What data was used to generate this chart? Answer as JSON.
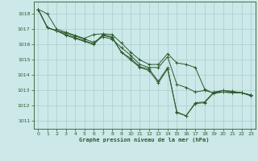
{
  "title": "Graphe pression niveau de la mer (hPa)",
  "background_color": "#cce8e8",
  "grid_color": "#aacccc",
  "line_color": "#2d5a2d",
  "marker_color": "#2d5a2d",
  "xlim": [
    -0.5,
    23.5
  ],
  "ylim": [
    1010.5,
    1018.8
  ],
  "yticks": [
    1011,
    1012,
    1013,
    1014,
    1015,
    1016,
    1017,
    1018
  ],
  "xticks": [
    0,
    1,
    2,
    3,
    4,
    5,
    6,
    7,
    8,
    9,
    10,
    11,
    12,
    13,
    14,
    15,
    16,
    17,
    18,
    19,
    20,
    21,
    22,
    23
  ],
  "series": [
    {
      "x": [
        0,
        1,
        2,
        3,
        4,
        5,
        6,
        7,
        8,
        9,
        10,
        11,
        12,
        13,
        14,
        15,
        16,
        17,
        18,
        19,
        20,
        21,
        22,
        23
      ],
      "y": [
        1018.3,
        1018.0,
        1017.0,
        1016.8,
        1016.6,
        1016.4,
        1016.65,
        1016.7,
        1016.65,
        1016.1,
        1015.5,
        1015.0,
        1014.7,
        1014.7,
        1015.4,
        1014.8,
        1014.7,
        1014.5,
        1013.1,
        1012.8,
        1012.9,
        1012.85,
        1012.85,
        1012.7
      ]
    },
    {
      "x": [
        0,
        1,
        2,
        3,
        4,
        5,
        6,
        7,
        8,
        9,
        10,
        11,
        12,
        13,
        14,
        15,
        16,
        17,
        18,
        19,
        20,
        21,
        22,
        23
      ],
      "y": [
        1018.3,
        1017.1,
        1016.9,
        1016.75,
        1016.55,
        1016.35,
        1016.15,
        1016.5,
        1016.35,
        1015.8,
        1015.3,
        1014.7,
        1014.5,
        1014.5,
        1015.2,
        1013.4,
        1013.2,
        1012.9,
        1013.0,
        1012.85,
        1012.9,
        1012.85,
        1012.85,
        1012.7
      ]
    },
    {
      "x": [
        0,
        1,
        2,
        3,
        4,
        5,
        6,
        7,
        8,
        9,
        10,
        11,
        12,
        13,
        14,
        15,
        16,
        17,
        18,
        19,
        20,
        21,
        22,
        23
      ],
      "y": [
        1018.3,
        1017.1,
        1016.9,
        1016.65,
        1016.45,
        1016.25,
        1016.05,
        1016.65,
        1016.5,
        1015.5,
        1015.1,
        1014.55,
        1014.4,
        1013.6,
        1014.5,
        1011.55,
        1011.35,
        1012.2,
        1012.25,
        1012.9,
        1013.0,
        1012.95,
        1012.85,
        1012.7
      ]
    },
    {
      "x": [
        0,
        1,
        2,
        3,
        4,
        5,
        6,
        7,
        8,
        9,
        10,
        11,
        12,
        13,
        14,
        15,
        16,
        17,
        18,
        19,
        20,
        21,
        22,
        23
      ],
      "y": [
        1018.3,
        1017.1,
        1016.9,
        1016.6,
        1016.4,
        1016.2,
        1016.0,
        1016.6,
        1016.45,
        1015.5,
        1015.0,
        1014.5,
        1014.3,
        1013.5,
        1014.4,
        1011.6,
        1011.35,
        1012.15,
        1012.2,
        1012.85,
        1013.0,
        1012.9,
        1012.85,
        1012.65
      ]
    }
  ]
}
